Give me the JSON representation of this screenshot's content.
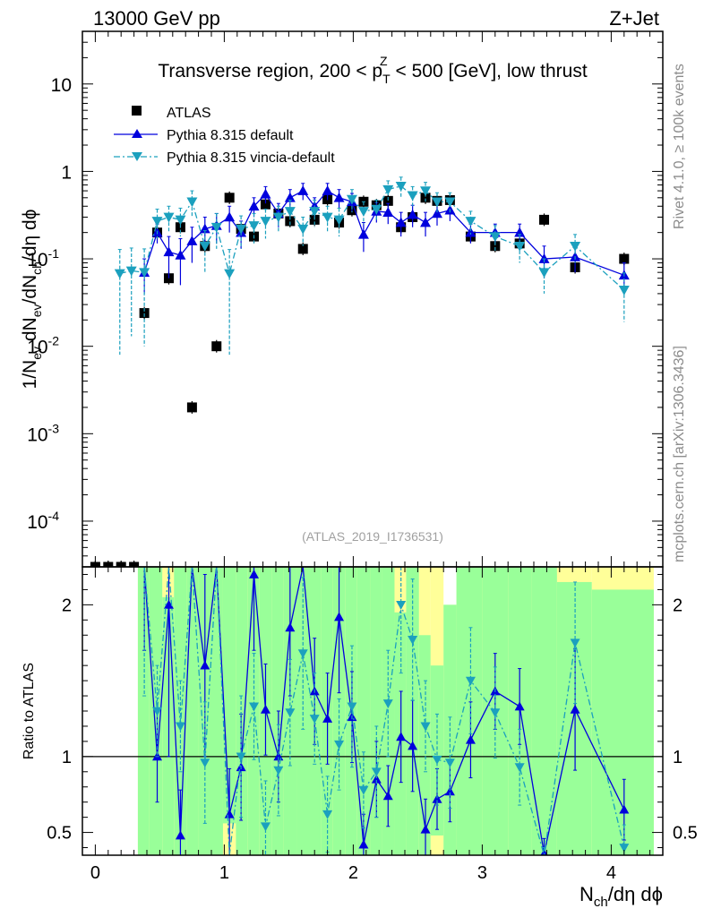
{
  "header": {
    "left": "13000 GeV pp",
    "right": "Z+Jet"
  },
  "side_labels": {
    "rivet": "Rivet 4.1.0, ≥ 100k events",
    "mcplots": "mcplots.cern.ch [arXiv:1306.3436]"
  },
  "watermark": "(ATLAS_2019_I1736531)",
  "chart_data": {
    "type": "scatter",
    "title": "Transverse region, 200 < p_T^Z < 500 [GeV], low thrust",
    "title_parts": {
      "pre": "Transverse region, 200 < p",
      "sub": "T",
      "sup": "Z",
      "post": " < 500 [GeV], low thrust"
    },
    "xlabel": "N_ch/dη dϕ",
    "xlabel_parts": {
      "n": "N",
      "sub": "ch",
      "rest": "/dη dϕ"
    },
    "ylabel": "1/N_ev dN_ev/dN_ch/dη dϕ",
    "ylabel_parts": {
      "a": "1/N",
      "a_sub": "ev",
      "b": " dN",
      "b_sub": "ev",
      "c": "/dN",
      "c_sub": "ch",
      "d": "/dη dϕ"
    },
    "ratio_ylabel": "Ratio to ATLAS",
    "xlim": [
      -0.1,
      4.4
    ],
    "ylim_log": [
      3e-05,
      40
    ],
    "ratio_ylim": [
      0.35,
      2.25
    ],
    "x_ticks": [
      "0",
      "1",
      "2",
      "3",
      "4"
    ],
    "y_ticks": [
      {
        "base": "10",
        "exp": "-4",
        "value": 0.0001
      },
      {
        "base": "10",
        "exp": "-3",
        "value": 0.001
      },
      {
        "base": "10",
        "exp": "-2",
        "value": 0.01
      },
      {
        "base": "10",
        "exp": "-1",
        "value": 0.1
      },
      {
        "base": "1",
        "exp": "",
        "value": 1
      },
      {
        "base": "10",
        "exp": "",
        "value": 10
      }
    ],
    "ratio_ticks": [
      "0.5",
      "1",
      "2"
    ],
    "legend": [
      "ATLAS",
      "Pythia 8.315 default",
      "Pythia 8.315 vincia-default"
    ],
    "series": [
      {
        "name": "ATLAS",
        "style": "square",
        "x": [
          0,
          0.1,
          0.2,
          0.3,
          0.38,
          0.48,
          0.57,
          0.66,
          0.75,
          0.85,
          0.94,
          1.04,
          1.13,
          1.23,
          1.32,
          1.42,
          1.51,
          1.61,
          1.7,
          1.8,
          1.89,
          1.99,
          2.08,
          2.18,
          2.27,
          2.37,
          2.46,
          2.56,
          2.65,
          2.75,
          2.91,
          3.1,
          3.29,
          3.48,
          3.72,
          4.1
        ],
        "y": [
          3e-05,
          3e-05,
          3e-05,
          3e-05,
          0.024,
          0.2,
          0.06,
          0.23,
          0.002,
          0.14,
          0.01,
          0.5,
          0.22,
          0.18,
          0.42,
          0.33,
          0.27,
          0.13,
          0.28,
          0.48,
          0.26,
          0.36,
          0.45,
          0.41,
          0.46,
          0.23,
          0.3,
          0.5,
          0.46,
          0.47,
          0.18,
          0.14,
          0.15,
          0.28,
          0.08,
          0.1
        ]
      },
      {
        "name": "Pythia 8.315 default",
        "style": "triangle-up",
        "color": "#0000dd",
        "x": [
          0.38,
          0.48,
          0.57,
          0.66,
          0.75,
          0.85,
          0.94,
          1.04,
          1.13,
          1.23,
          1.32,
          1.42,
          1.51,
          1.61,
          1.7,
          1.8,
          1.89,
          1.99,
          2.08,
          2.18,
          2.27,
          2.37,
          2.46,
          2.56,
          2.65,
          2.75,
          2.91,
          3.1,
          3.29,
          3.48,
          3.72,
          4.1
        ],
        "y": [
          0.07,
          0.2,
          0.12,
          0.11,
          0.16,
          0.22,
          0.24,
          0.3,
          0.2,
          0.4,
          0.55,
          0.33,
          0.5,
          0.6,
          0.4,
          0.6,
          0.5,
          0.45,
          0.19,
          0.35,
          0.34,
          0.26,
          0.32,
          0.26,
          0.33,
          0.36,
          0.2,
          0.2,
          0.2,
          0.1,
          0.105,
          0.065
        ],
        "err": [
          0.03,
          0.05,
          0.06,
          0.06,
          0.07,
          0.08,
          0.09,
          0.1,
          0.07,
          0.1,
          0.12,
          0.1,
          0.12,
          0.13,
          0.1,
          0.13,
          0.12,
          0.11,
          0.07,
          0.09,
          0.09,
          0.08,
          0.09,
          0.08,
          0.09,
          0.09,
          0.05,
          0.05,
          0.05,
          0.04,
          0.035,
          0.025
        ],
        "ratio": [
          2.9,
          1.0,
          2.0,
          0.48,
          80,
          1.6,
          24,
          0.62,
          0.93,
          2.2,
          1.31,
          1.0,
          1.85,
          4.6,
          1.43,
          1.25,
          1.92,
          1.26,
          0.42,
          0.85,
          0.74,
          1.13,
          1.07,
          0.52,
          0.72,
          0.77,
          1.11,
          1.43,
          1.33,
          0.36,
          1.31,
          0.65
        ],
        "ratio_err": [
          1.2,
          0.3,
          1.0,
          0.3,
          40,
          0.6,
          12,
          0.3,
          0.35,
          0.5,
          0.3,
          0.3,
          0.45,
          1.0,
          0.35,
          0.3,
          0.5,
          0.3,
          0.2,
          0.25,
          0.2,
          0.3,
          0.3,
          0.2,
          0.2,
          0.2,
          0.25,
          0.25,
          0.25,
          0.1,
          0.4,
          0.2
        ]
      },
      {
        "name": "Pythia 8.315 vincia-default",
        "style": "triangle-down",
        "color": "#1ba0be",
        "x": [
          0.19,
          0.28,
          0.38,
          0.48,
          0.57,
          0.66,
          0.75,
          0.85,
          0.94,
          1.04,
          1.13,
          1.23,
          1.32,
          1.42,
          1.51,
          1.61,
          1.7,
          1.8,
          1.89,
          1.99,
          2.08,
          2.18,
          2.27,
          2.37,
          2.46,
          2.56,
          2.65,
          2.75,
          2.91,
          3.1,
          3.29,
          3.48,
          3.72,
          4.1
        ],
        "y": [
          0.068,
          0.073,
          0.07,
          0.27,
          0.3,
          0.28,
          0.45,
          0.14,
          0.23,
          0.068,
          0.22,
          0.24,
          0.27,
          0.3,
          0.35,
          0.22,
          0.35,
          0.3,
          0.28,
          0.48,
          0.35,
          0.37,
          0.62,
          0.68,
          0.53,
          0.6,
          0.45,
          0.45,
          0.27,
          0.18,
          0.14,
          0.07,
          0.14,
          0.044
        ],
        "err": [
          0.06,
          0.06,
          0.06,
          0.1,
          0.1,
          0.1,
          0.15,
          0.07,
          0.1,
          0.06,
          0.09,
          0.09,
          0.1,
          0.1,
          0.12,
          0.08,
          0.12,
          0.1,
          0.1,
          0.14,
          0.1,
          0.1,
          0.16,
          0.18,
          0.14,
          0.15,
          0.12,
          0.12,
          0.08,
          0.06,
          0.05,
          0.03,
          0.05,
          0.025
        ],
        "ratio": [
          null,
          null,
          2.9,
          1.3,
          5,
          1.2,
          200,
          0.96,
          23,
          0.14,
          1.0,
          1.33,
          0.54,
          0.91,
          1.29,
          1.68,
          1.25,
          0.62,
          1.08,
          1.33,
          0.78,
          0.9,
          1.35,
          2.0,
          1.77,
          1.2,
          0.98,
          0.96,
          1.5,
          1.29,
          0.93,
          0.25,
          1.75,
          0.4
        ],
        "ratio_err": [
          null,
          null,
          1.5,
          0.3,
          2,
          0.3,
          100,
          0.4,
          10,
          0.1,
          0.4,
          0.35,
          0.3,
          0.3,
          0.35,
          0.5,
          0.3,
          0.25,
          0.3,
          0.4,
          0.25,
          0.3,
          0.35,
          0.45,
          0.4,
          0.3,
          0.3,
          0.3,
          0.35,
          0.3,
          0.25,
          0.15,
          0.4,
          0.15
        ]
      }
    ],
    "bands": {
      "yellow_color": "#ffff99",
      "green_color": "#99ff99",
      "edges": [
        0.33,
        0.42,
        0.52,
        0.61,
        0.71,
        0.8,
        0.9,
        0.99,
        1.09,
        1.18,
        1.27,
        1.37,
        1.46,
        1.56,
        1.65,
        1.75,
        1.84,
        1.94,
        2.03,
        2.13,
        2.22,
        2.32,
        2.41,
        2.51,
        2.6,
        2.7,
        2.8,
        3.0,
        3.2,
        3.38,
        3.58,
        3.85,
        4.33
      ],
      "green_hi": [
        2.25,
        2.25,
        2.05,
        2.25,
        2.25,
        2.25,
        2.25,
        2.25,
        2.25,
        2.25,
        2.25,
        2.25,
        2.25,
        2.25,
        2.25,
        2.25,
        2.25,
        2.25,
        2.25,
        2.25,
        2.25,
        1.95,
        2.25,
        1.8,
        1.6,
        2.0,
        2.25,
        2.25,
        2.25,
        2.25,
        2.15,
        2.1
      ],
      "yellow_hi": [
        2.25,
        2.25,
        2.25,
        2.25,
        2.25,
        2.25,
        2.25,
        2.25,
        2.25,
        2.25,
        2.25,
        2.25,
        2.25,
        2.25,
        2.25,
        2.25,
        2.25,
        2.25,
        2.25,
        2.25,
        2.25,
        2.25,
        2.25,
        2.25,
        2.25,
        2.0,
        2.25,
        2.25,
        2.25,
        2.25,
        2.25,
        2.25
      ],
      "green_lo": [
        0.35,
        0.35,
        0.35,
        0.35,
        0.35,
        0.35,
        0.35,
        0.56,
        0.35,
        0.35,
        0.35,
        0.35,
        0.35,
        0.35,
        0.35,
        0.35,
        0.35,
        0.35,
        0.35,
        0.35,
        0.35,
        0.35,
        0.35,
        0.35,
        0.48,
        0.35,
        0.35,
        0.35,
        0.35,
        0.35,
        0.35,
        0.35
      ]
    }
  }
}
